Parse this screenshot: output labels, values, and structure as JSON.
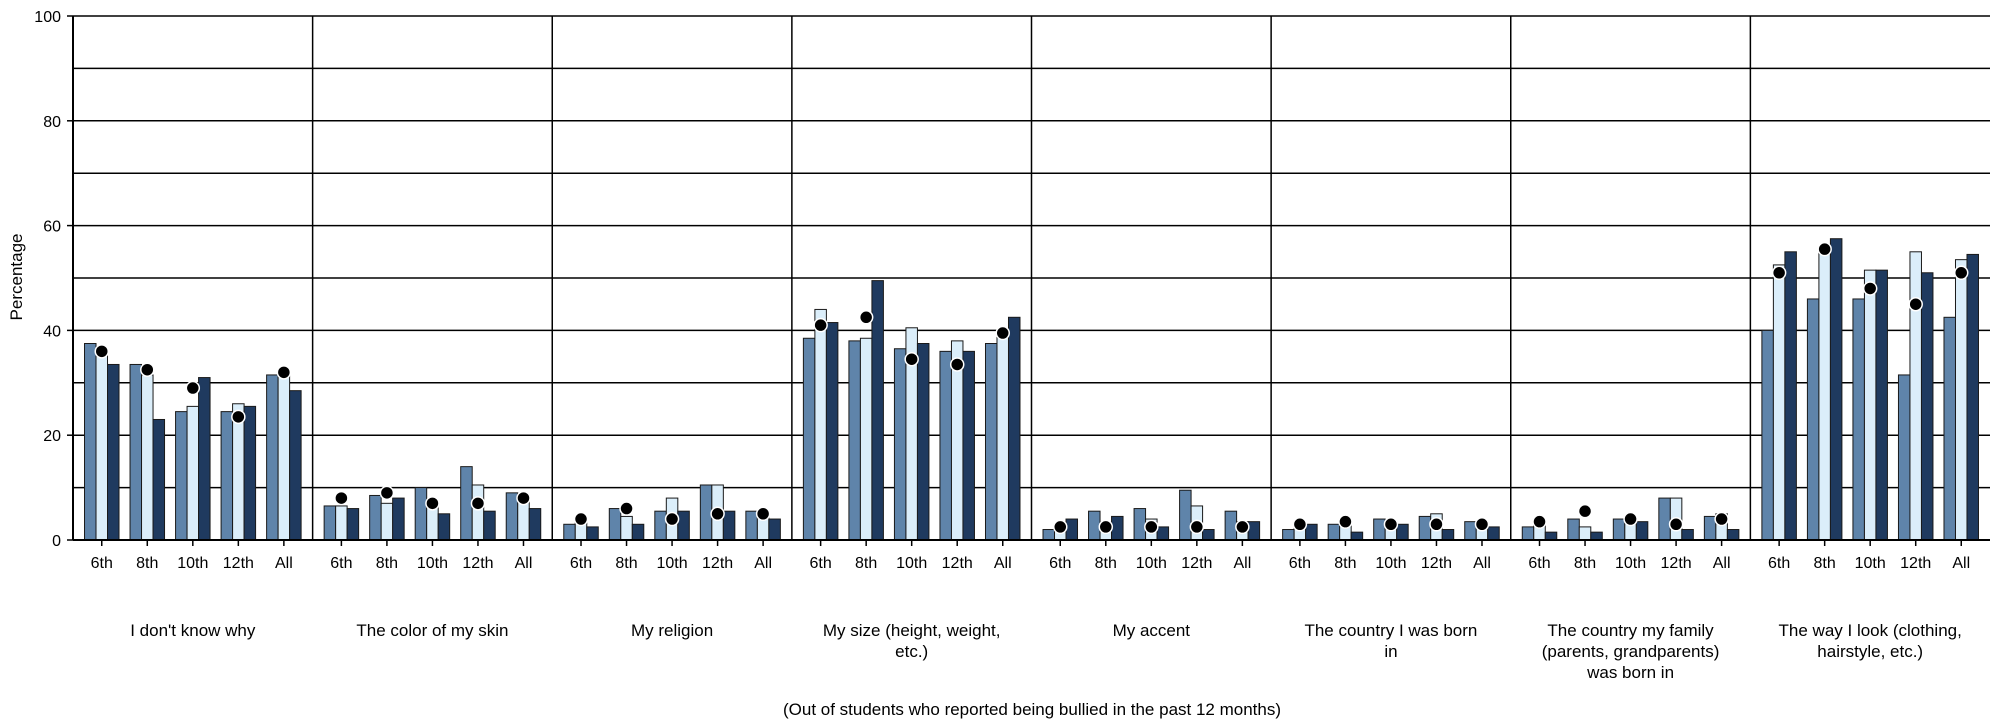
{
  "chart_data": {
    "type": "bar",
    "xlabel": "(Out of students who reported being bullied in the past 12 months)",
    "ylabel": "Percentage",
    "ylim": [
      0,
      100
    ],
    "yticks": [
      "0",
      "20",
      "40",
      "60",
      "80",
      "100"
    ],
    "grid": true,
    "sub_categories": [
      "6th",
      "8th",
      "10th",
      "12th",
      "All"
    ],
    "groups": [
      {
        "label": "I don't know why",
        "label_lines": [
          "I don't know why"
        ],
        "bars": [
          [
            37.5,
            36.5,
            33.5
          ],
          [
            33.5,
            31.5,
            23
          ],
          [
            24.5,
            25.5,
            31
          ],
          [
            24.5,
            26,
            25.5
          ],
          [
            31.5,
            31.5,
            28.5
          ]
        ],
        "dots": [
          36,
          32.5,
          29,
          23.5,
          32
        ]
      },
      {
        "label": "The color of my skin",
        "label_lines": [
          "The color of my skin"
        ],
        "bars": [
          [
            6.5,
            6.5,
            6
          ],
          [
            8.5,
            7,
            8
          ],
          [
            10,
            7,
            5
          ],
          [
            14,
            10.5,
            5.5
          ],
          [
            9,
            8.5,
            6
          ]
        ],
        "dots": [
          8,
          9,
          7,
          7,
          8
        ]
      },
      {
        "label": "My religion",
        "label_lines": [
          "My religion"
        ],
        "bars": [
          [
            3,
            4,
            2.5
          ],
          [
            6,
            4.5,
            3
          ],
          [
            5.5,
            8,
            5.5
          ],
          [
            10.5,
            10.5,
            5.5
          ],
          [
            5.5,
            5.5,
            4
          ]
        ],
        "dots": [
          4,
          6,
          4,
          5,
          5
        ]
      },
      {
        "label": "My size (height, weight, etc.)",
        "label_lines": [
          "My size (height, weight,",
          "etc.)"
        ],
        "bars": [
          [
            38.5,
            44,
            41.5
          ],
          [
            38,
            38.5,
            49.5
          ],
          [
            36.5,
            40.5,
            37.5
          ],
          [
            36,
            38,
            36
          ],
          [
            37.5,
            39.5,
            42.5
          ]
        ],
        "dots": [
          41,
          42.5,
          34.5,
          33.5,
          39.5
        ]
      },
      {
        "label": "My accent",
        "label_lines": [
          "My accent"
        ],
        "bars": [
          [
            2,
            3,
            4
          ],
          [
            5.5,
            3,
            4.5
          ],
          [
            6,
            4,
            2.5
          ],
          [
            9.5,
            6.5,
            2
          ],
          [
            5.5,
            3.5,
            3.5
          ]
        ],
        "dots": [
          2.5,
          2.5,
          2.5,
          2.5,
          2.5
        ]
      },
      {
        "label": "The country I was born in",
        "label_lines": [
          "The country I was born",
          "in"
        ],
        "bars": [
          [
            2,
            3,
            3
          ],
          [
            3,
            3.5,
            1.5
          ],
          [
            4,
            3.5,
            3
          ],
          [
            4.5,
            5,
            2
          ],
          [
            3.5,
            3,
            2.5
          ]
        ],
        "dots": [
          3,
          3.5,
          3,
          3,
          3
        ]
      },
      {
        "label": "The country my family (parents, grandparents) was born in",
        "label_lines": [
          "The country my family",
          "(parents, grandparents)",
          "was born in"
        ],
        "bars": [
          [
            2.5,
            3,
            1.5
          ],
          [
            4,
            2.5,
            1.5
          ],
          [
            4,
            4.5,
            3.5
          ],
          [
            8,
            8,
            2
          ],
          [
            4.5,
            5,
            2
          ]
        ],
        "dots": [
          3.5,
          5.5,
          4,
          3,
          4
        ]
      },
      {
        "label": "The way I look (clothing, hairstyle, etc.)",
        "label_lines": [
          "The way I look (clothing,",
          "hairstyle, etc.)"
        ],
        "bars": [
          [
            40,
            52.5,
            55
          ],
          [
            46,
            55.5,
            57.5
          ],
          [
            46,
            51.5,
            51.5
          ],
          [
            31.5,
            55,
            51
          ],
          [
            42.5,
            53.5,
            54.5
          ]
        ],
        "dots": [
          51,
          55.5,
          48,
          45,
          51
        ]
      }
    ],
    "colors": {
      "bar1": "#5f84aa",
      "bar2": "#dbeefa",
      "bar3": "#1f3a5f",
      "bar_stroke": "#1a1a1a",
      "dot": "#000000",
      "grid": "#000000"
    }
  }
}
